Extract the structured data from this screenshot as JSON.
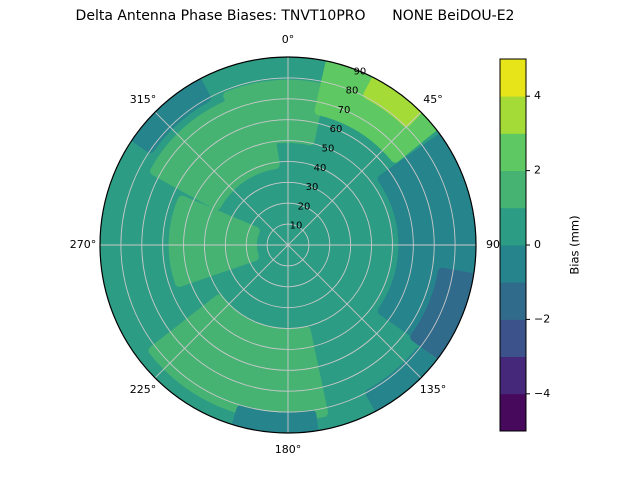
{
  "title": "Delta Antenna Phase Biases: TNVT10PRO      NONE BeiDOU-E2",
  "chart_data": {
    "type": "heatmap",
    "projection": "polar",
    "title": "Delta Antenna Phase Biases: TNVT10PRO      NONE BeiDOU-E2",
    "azimuth_ticks_deg": [
      0,
      45,
      90,
      135,
      180,
      225,
      270,
      315
    ],
    "azimuth_tick_labels": [
      "0°",
      "45°",
      "90",
      "135°",
      "180°",
      "225°",
      "270°",
      "315°"
    ],
    "radial_ticks": [
      10,
      20,
      30,
      40,
      50,
      60,
      70,
      80,
      90
    ],
    "radial_tick_labels": [
      "10",
      "20",
      "30",
      "40",
      "50",
      "60",
      "70",
      "80",
      "90"
    ],
    "radial_tick_azimuth_deg": 22.5,
    "radial_max": 90,
    "grid": true,
    "grid_color": "#c9c9c9",
    "colorbar": {
      "label": "Bias (mm)",
      "range": [
        -5,
        5
      ],
      "level_step": 1,
      "ticks": [
        -4,
        -2,
        0,
        2,
        4
      ],
      "tick_labels": [
        "−4",
        "−2",
        "0",
        "2",
        "4"
      ],
      "colormap": "viridis",
      "band_colors": [
        "#46095c",
        "#46287a",
        "#3b528b",
        "#316b8b",
        "#26848c",
        "#2d9c84",
        "#46b373",
        "#5ec962",
        "#a5db36",
        "#e8e41a"
      ]
    },
    "background_bias_mm": 0.5,
    "regions": [
      {
        "az_deg": 355,
        "az_span_deg": 34,
        "r": 64,
        "r_span": 26,
        "bias_mm": 1.5
      },
      {
        "az_deg": 325,
        "az_span_deg": 52,
        "r": 56,
        "r_span": 34,
        "bias_mm": 1.5
      },
      {
        "az_deg": 272,
        "az_span_deg": 42,
        "r": 36,
        "r_span": 38,
        "bias_mm": 1.5
      },
      {
        "az_deg": 200,
        "az_span_deg": 64,
        "r": 62,
        "r_span": 40,
        "bias_mm": 1.5
      },
      {
        "az_deg": 90,
        "az_span_deg": 70,
        "r": 75,
        "r_span": 40,
        "bias_mm": -0.5
      },
      {
        "az_deg": 113,
        "az_span_deg": 26,
        "r": 83,
        "r_span": 16,
        "bias_mm": -1.5
      },
      {
        "az_deg": 140,
        "az_span_deg": 22,
        "r": 87,
        "r_span": 12,
        "bias_mm": -0.5
      },
      {
        "az_deg": 318,
        "az_span_deg": 26,
        "r": 86,
        "r_span": 11,
        "bias_mm": -0.5
      },
      {
        "az_deg": 184,
        "az_span_deg": 24,
        "r": 87,
        "r_span": 10,
        "bias_mm": -0.5
      },
      {
        "az_deg": 32,
        "az_span_deg": 38,
        "r": 79,
        "r_span": 26,
        "bias_mm": 2.5
      },
      {
        "az_deg": 36,
        "az_span_deg": 16,
        "r": 87,
        "r_span": 11,
        "bias_mm": 3.5
      }
    ]
  }
}
